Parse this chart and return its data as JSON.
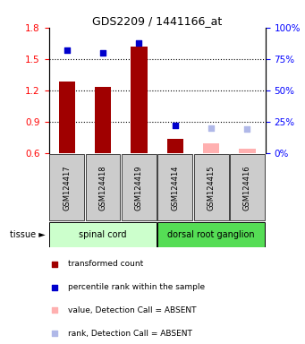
{
  "title": "GDS2209 / 1441166_at",
  "samples": [
    "GSM124417",
    "GSM124418",
    "GSM124419",
    "GSM124414",
    "GSM124415",
    "GSM124416"
  ],
  "bar_values": [
    1.28,
    1.23,
    1.62,
    0.74,
    null,
    null
  ],
  "bar_values_absent": [
    null,
    null,
    null,
    null,
    0.69,
    0.64
  ],
  "rank_values": [
    0.82,
    0.8,
    0.88,
    0.22,
    null,
    null
  ],
  "rank_values_absent": [
    null,
    null,
    null,
    null,
    0.2,
    0.19
  ],
  "ylim_left": [
    0.6,
    1.8
  ],
  "ylim_right": [
    0,
    100
  ],
  "yticks_left": [
    0.6,
    0.9,
    1.2,
    1.5,
    1.8
  ],
  "yticks_right": [
    0,
    25,
    50,
    75,
    100
  ],
  "ytick_labels_right": [
    "0%",
    "25%",
    "50%",
    "75%",
    "100%"
  ],
  "bar_color_present": "#a00000",
  "bar_color_absent": "#ffb0b0",
  "rank_color_present": "#0000cc",
  "rank_color_absent": "#b0b8e8",
  "tissue_groups": [
    {
      "label": "spinal cord",
      "samples": [
        0,
        1,
        2
      ],
      "color": "#ccffcc"
    },
    {
      "label": "dorsal root ganglion",
      "samples": [
        3,
        4,
        5
      ],
      "color": "#55dd55"
    }
  ],
  "tissue_label": "tissue",
  "legend_items": [
    {
      "label": "transformed count",
      "color": "#a00000"
    },
    {
      "label": "percentile rank within the sample",
      "color": "#0000cc"
    },
    {
      "label": "value, Detection Call = ABSENT",
      "color": "#ffb0b0"
    },
    {
      "label": "rank, Detection Call = ABSENT",
      "color": "#b0b8e8"
    }
  ],
  "bar_width": 0.45,
  "grid_ticks": [
    0.9,
    1.2,
    1.5
  ],
  "sample_box_color": "#cccccc",
  "fig_width": 3.41,
  "fig_height": 3.84,
  "fig_dpi": 100
}
